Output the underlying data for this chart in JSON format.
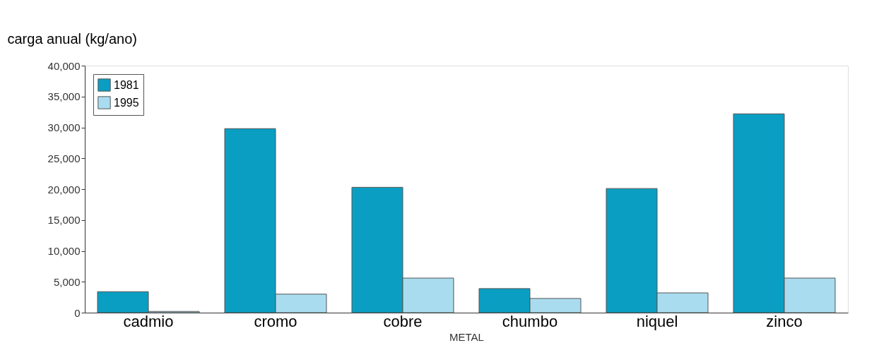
{
  "chart_data": {
    "type": "bar",
    "ylabel": "carga anual (kg/ano)",
    "xlabel": "METAL",
    "categories": [
      "cadmio",
      "cromo",
      "cobre",
      "chumbo",
      "niquel",
      "zinco"
    ],
    "series": [
      {
        "name": "1981",
        "color": "#0a9ec2",
        "values": [
          3400,
          29800,
          20300,
          3900,
          20100,
          32200
        ]
      },
      {
        "name": "1995",
        "color": "#a9dcef",
        "values": [
          200,
          3000,
          5600,
          2300,
          3200,
          5600
        ]
      }
    ],
    "ylim": [
      0,
      40000
    ],
    "yticks": [
      0,
      {
        "value": 5000,
        "label": "5,000"
      },
      {
        "value": 10000,
        "label": "10,000"
      },
      {
        "value": 15000,
        "label": "15,000"
      },
      {
        "value": 20000,
        "label": "20,000"
      },
      {
        "value": 25000,
        "label": "25,000"
      },
      {
        "value": 30000,
        "label": "30,000"
      },
      {
        "value": 35000,
        "label": "35,000"
      },
      {
        "value": 40000,
        "label": "40,000"
      }
    ],
    "grid": false,
    "legend": "top left"
  }
}
